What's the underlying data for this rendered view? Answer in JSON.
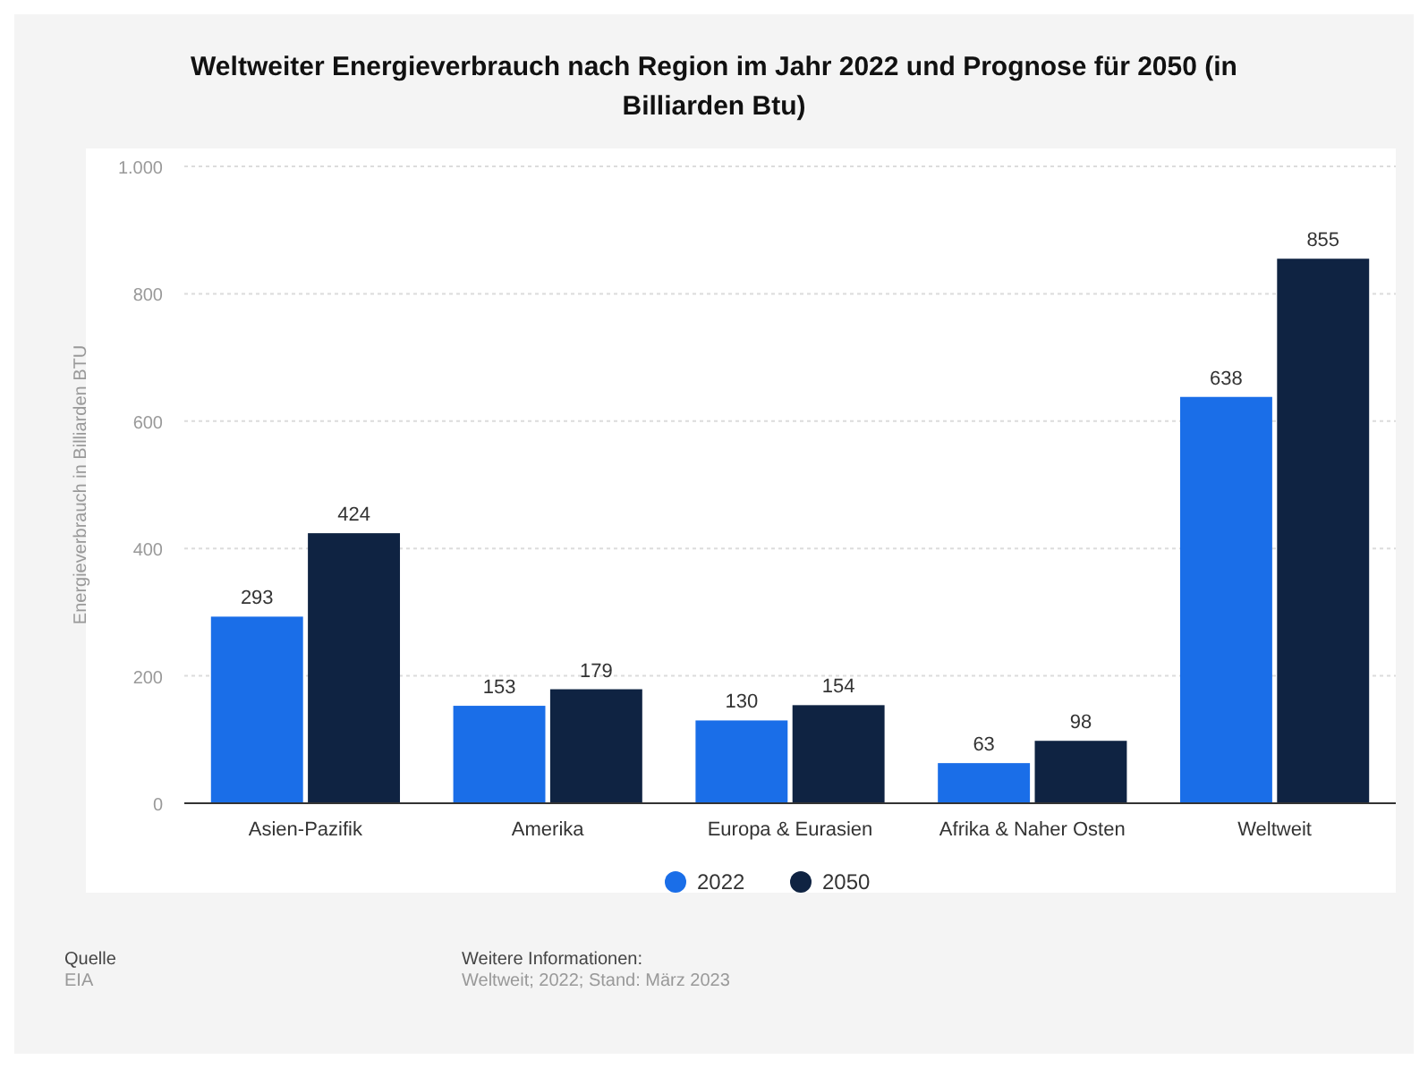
{
  "chart_data": {
    "type": "bar",
    "title": "Weltweiter Energieverbrauch nach Region im Jahr 2022 und Prognose für 2050 (in Billiarden Btu)",
    "ylabel": "Energieverbrauch in Billiarden BTU",
    "categories": [
      "Asien-Pazifik",
      "Amerika",
      "Europa & Eurasien",
      "Afrika & Naher Osten",
      "Weltweit"
    ],
    "series": [
      {
        "name": "2022",
        "color": "#1a6ee8",
        "values": [
          293,
          153,
          130,
          63,
          638
        ]
      },
      {
        "name": "2050",
        "color": "#0f2342",
        "values": [
          424,
          179,
          154,
          98,
          855
        ]
      }
    ],
    "ylim": [
      0,
      1000
    ],
    "yticks": [
      0,
      200,
      400,
      600,
      800,
      {
        "value": 1000,
        "label": "1.000"
      }
    ],
    "grid": "y",
    "legend": "bottom",
    "data_labels": true,
    "annotations": [
      "Quelle",
      "EIA",
      "Weitere Informationen:",
      "Weltweit; 2022; Stand: März 2023"
    ]
  }
}
